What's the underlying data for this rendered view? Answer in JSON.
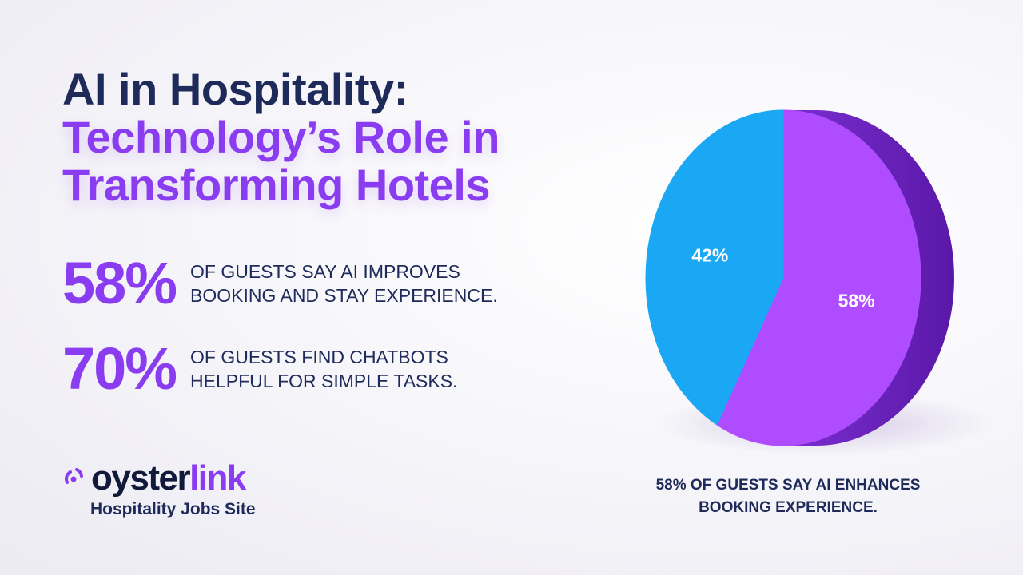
{
  "title": {
    "line1": "AI in Hospitality:",
    "line2": "Technology’s Role in",
    "line3": "Transforming Hotels"
  },
  "stats": [
    {
      "value": "58%",
      "text": "OF GUESTS SAY AI IMPROVES BOOKING AND STAY EXPERIENCE."
    },
    {
      "value": "70%",
      "text": "OF GUESTS FIND CHATBOTS HELPFUL FOR SIMPLE TASKS."
    }
  ],
  "logo": {
    "word_part1": "oyster",
    "word_part2": "link",
    "tagline": "Hospitality Jobs Site"
  },
  "caption": "58% OF GUESTS SAY AI ENHANCES BOOKING EXPERIENCE.",
  "colors": {
    "navy": "#1e2a5a",
    "purple": "#8a3df0",
    "slice_purple": "#b04cff",
    "slice_blue": "#1aa8f5"
  },
  "chart_data": {
    "type": "pie",
    "title": "",
    "slices": [
      {
        "label": "58%",
        "value": 58,
        "color": "#b04cff"
      },
      {
        "label": "42%",
        "value": 42,
        "color": "#1aa8f5"
      }
    ]
  }
}
